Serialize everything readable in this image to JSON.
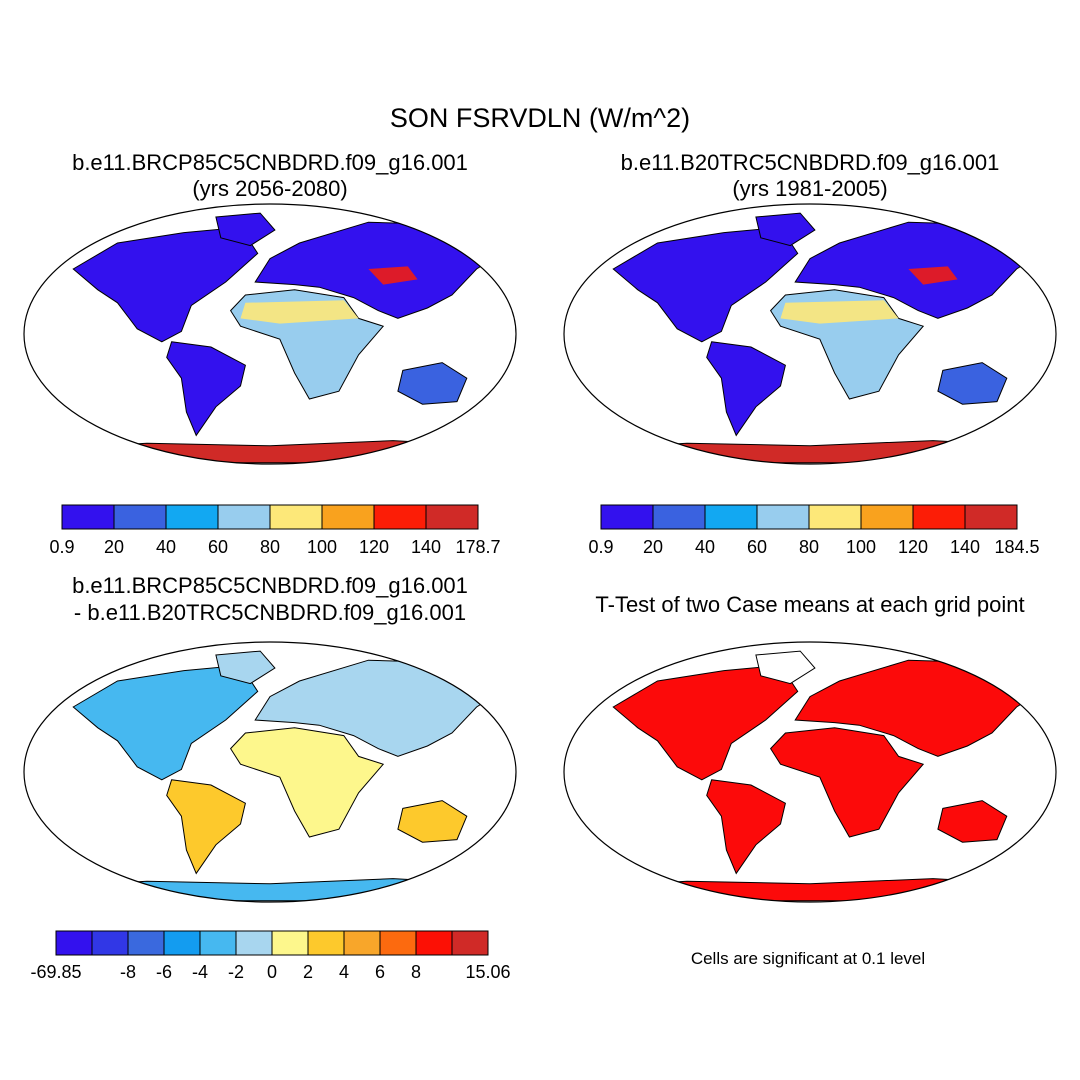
{
  "figure": {
    "title": "SON FSRVDLN (W/m^2)"
  },
  "panels": [
    {
      "id": "case1",
      "title_line1": "b.e11.BRCP85C5CNBDRD.f09_g16.001",
      "title_line2": "(yrs 2056-2080)",
      "type": "field",
      "colorbar": {
        "colors": [
          "#3311ee",
          "#3a62e0",
          "#12a8f2",
          "#98cdee",
          "#fde879",
          "#f9a21e",
          "#fc1d06",
          "#d02a27"
        ],
        "labels": [
          "0.9",
          "20",
          "40",
          "60",
          "80",
          "100",
          "120",
          "140",
          "178.7"
        ]
      }
    },
    {
      "id": "case2",
      "title_line1": "b.e11.B20TRC5CNBDRD.f09_g16.001",
      "title_line2": "(yrs 1981-2005)",
      "type": "field",
      "colorbar": {
        "colors": [
          "#3311ee",
          "#3a62e0",
          "#12a8f2",
          "#98cdee",
          "#fde879",
          "#f9a21e",
          "#fc1d06",
          "#d02a27"
        ],
        "labels": [
          "0.9",
          "20",
          "40",
          "60",
          "80",
          "100",
          "120",
          "140",
          "184.5"
        ]
      }
    },
    {
      "id": "diff",
      "title_line1": "b.e11.BRCP85C5CNBDRD.f09_g16.001",
      "title_line2": "- b.e11.B20TRC5CNBDRD.f09_g16.001",
      "type": "difference",
      "colorbar": {
        "colors": [
          "#3311ee",
          "#3137e6",
          "#3a69de",
          "#139cf0",
          "#46b8f0",
          "#a8d6ef",
          "#fdf78c",
          "#fdc92c",
          "#f8a62a",
          "#fc6a0f",
          "#fc1005",
          "#d02a27"
        ],
        "labels": [
          "-69.85",
          "",
          "-8",
          "-6",
          "-4",
          "-2",
          "0",
          "2",
          "4",
          "6",
          "8",
          "",
          "15.06"
        ]
      }
    },
    {
      "id": "ttest",
      "title_line1": "T-Test of two Case means at each grid point",
      "type": "significance",
      "note": "Cells are significant at 0.1 level",
      "colors": {
        "significant": "#fc0a0a"
      }
    }
  ]
}
